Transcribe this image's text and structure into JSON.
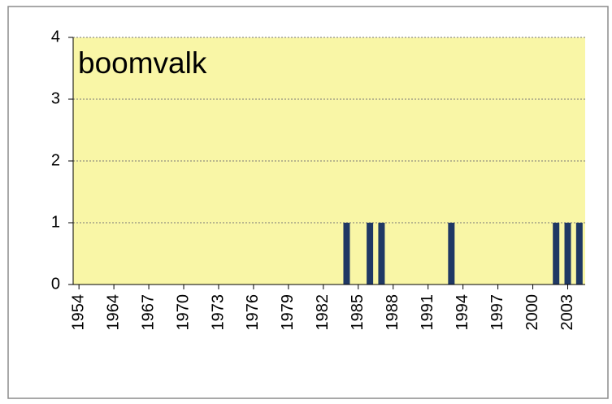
{
  "chart_data": {
    "type": "bar",
    "title": "boomvalk",
    "categories": [
      "1954",
      null,
      null,
      "1964",
      null,
      null,
      "1967",
      null,
      null,
      "1970",
      null,
      null,
      "1973",
      null,
      null,
      "1976",
      null,
      null,
      "1979",
      null,
      null,
      "1982",
      null,
      null,
      "1985",
      null,
      null,
      "1988",
      null,
      null,
      "1991",
      null,
      null,
      "1994",
      null,
      null,
      "1997",
      null,
      null,
      "2000",
      null,
      null,
      "2003",
      null
    ],
    "values": [
      0,
      0,
      0,
      0,
      0,
      0,
      0,
      0,
      0,
      0,
      0,
      0,
      0,
      0,
      0,
      0,
      0,
      0,
      0,
      0,
      0,
      0,
      0,
      1,
      0,
      1,
      1,
      0,
      0,
      0,
      0,
      0,
      1,
      0,
      0,
      0,
      0,
      0,
      0,
      0,
      0,
      1,
      1,
      1
    ],
    "color": "#1f3864",
    "ylim": [
      0,
      4
    ],
    "yticks": [
      0,
      1,
      2,
      3,
      4
    ],
    "grid": true
  }
}
